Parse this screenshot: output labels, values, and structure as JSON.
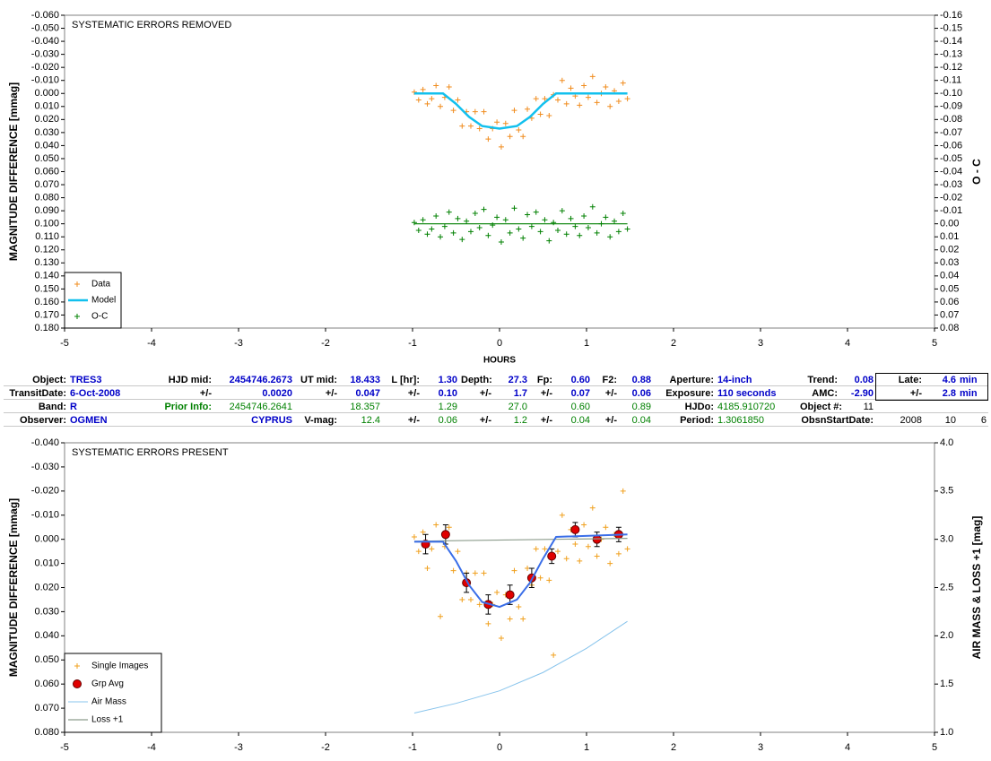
{
  "chart_data": [
    {
      "type": "scatter-line",
      "title": "SYSTEMATIC ERRORS REMOVED",
      "ylabel": "MAGNITUDE DIFFERENCE [mmag]",
      "y2label": "O - C",
      "xlabel": "HOURS",
      "xlim": [
        -5,
        5
      ],
      "xticks": [
        -5,
        -4,
        -3,
        -2,
        -1,
        0,
        1,
        2,
        3,
        4,
        5
      ],
      "ylim": [
        -0.06,
        0.18
      ],
      "y_reversed": true,
      "yticks": [
        {
          "value": -0.06,
          "label": "-0.060"
        },
        {
          "value": -0.05,
          "label": "-0.050"
        },
        {
          "value": -0.04,
          "label": "-0.040"
        },
        {
          "value": -0.03,
          "label": "-0.030"
        },
        {
          "value": -0.02,
          "label": "-0.020"
        },
        {
          "value": -0.01,
          "label": "-0.010"
        },
        {
          "value": 0,
          "label": "0.000"
        },
        {
          "value": 0.01,
          "label": "0.010"
        },
        {
          "value": 0.02,
          "label": "0.020"
        },
        {
          "value": 0.03,
          "label": "0.030"
        },
        {
          "value": 0.04,
          "label": "0.040"
        },
        {
          "value": 0.05,
          "label": "0.050"
        },
        {
          "value": 0.06,
          "label": "0.060"
        },
        {
          "value": 0.07,
          "label": "0.070"
        },
        {
          "value": 0.08,
          "label": "0.080"
        },
        {
          "value": 0.09,
          "label": "0.090"
        },
        {
          "value": 0.1,
          "label": "0.100"
        },
        {
          "value": 0.11,
          "label": "0.110"
        },
        {
          "value": 0.12,
          "label": "0.120"
        },
        {
          "value": 0.13,
          "label": "0.130"
        },
        {
          "value": 0.14,
          "label": "0.140"
        },
        {
          "value": 0.15,
          "label": "0.150"
        },
        {
          "value": 0.16,
          "label": "0.160"
        },
        {
          "value": 0.17,
          "label": "0.170"
        },
        {
          "value": 0.18,
          "label": "0.180"
        }
      ],
      "y2lim": [
        -0.16,
        0.08
      ],
      "y2_reversed": true,
      "y2ticks": [
        -0.16,
        -0.15,
        -0.14,
        -0.13,
        -0.12,
        -0.11,
        {
          "value": -0.1,
          "label": "-0.10"
        },
        -0.09,
        -0.08,
        -0.07,
        -0.06,
        -0.05,
        -0.04,
        -0.03,
        -0.02,
        -0.01,
        {
          "value": 0,
          "label": "0.00"
        },
        0.01,
        0.02,
        0.03,
        0.04,
        0.05,
        0.06,
        0.07,
        0.08
      ],
      "legend": "lower left",
      "x": [
        -0.98,
        -0.93,
        -0.88,
        -0.83,
        -0.78,
        -0.73,
        -0.68,
        -0.63,
        -0.58,
        -0.53,
        -0.48,
        -0.43,
        -0.38,
        -0.33,
        -0.28,
        -0.23,
        -0.18,
        -0.13,
        -0.08,
        -0.03,
        0.02,
        0.07,
        0.12,
        0.17,
        0.22,
        0.27,
        0.32,
        0.37,
        0.42,
        0.47,
        0.52,
        0.57,
        0.62,
        0.67,
        0.72,
        0.77,
        0.82,
        0.87,
        0.92,
        0.97,
        1.02,
        1.07,
        1.12,
        1.17,
        1.22,
        1.27,
        1.32,
        1.37,
        1.42,
        1.47
      ],
      "series": [
        {
          "name": "Data",
          "marker": "plus",
          "color": "#f08c1e",
          "values": [
            -0.001,
            0.005,
            -0.003,
            0.008,
            0.004,
            -0.006,
            0.01,
            0.003,
            -0.005,
            0.013,
            0.005,
            0.025,
            0.014,
            0.025,
            0.014,
            0.027,
            0.014,
            0.035,
            0.027,
            0.022,
            0.041,
            0.023,
            0.033,
            0.013,
            0.028,
            0.033,
            0.012,
            0.019,
            0.004,
            0.016,
            0.004,
            0.017,
            0.001,
            0.005,
            -0.01,
            0.008,
            -0.004,
            0.002,
            0.009,
            -0.006,
            0.003,
            -0.013,
            0.007,
            0,
            -0.005,
            0.01,
            -0.002,
            0.006,
            -0.008,
            0.004
          ]
        },
        {
          "name": "Model",
          "marker": "line",
          "color": "#12c0ee",
          "width": 2.5,
          "x": [
            -0.98,
            -0.65,
            -0.5,
            -0.35,
            -0.2,
            0,
            0.2,
            0.35,
            0.5,
            0.65,
            1.47
          ],
          "values": [
            0,
            0,
            0.008,
            0.018,
            0.025,
            0.027,
            0.025,
            0.018,
            0.008,
            0,
            0
          ]
        },
        {
          "name": "O-C",
          "marker": "plus",
          "color": "#008000",
          "axis": "y2",
          "zero_line": true,
          "values": [
            -0.001,
            0.005,
            -0.003,
            0.008,
            0.004,
            -0.006,
            0.01,
            0.002,
            -0.009,
            0.007,
            -0.004,
            0.012,
            -0.002,
            0.006,
            -0.008,
            0.003,
            -0.011,
            0.009,
            0.001,
            -0.005,
            0.014,
            -0.003,
            0.007,
            -0.012,
            0.004,
            0.011,
            -0.007,
            0.002,
            -0.009,
            0.006,
            -0.003,
            0.013,
            -0.001,
            0.005,
            -0.01,
            0.008,
            -0.004,
            0.002,
            0.009,
            -0.006,
            0.003,
            -0.013,
            0.007,
            0,
            -0.005,
            0.01,
            -0.002,
            0.006,
            -0.008,
            0.004
          ]
        }
      ]
    },
    {
      "type": "scatter-line",
      "title": "SYSTEMATIC ERRORS PRESENT",
      "ylabel": "MAGNITUDE DIFFERENCE [mmag]",
      "y2label": "AIR MASS & LOSS +1 [mag]",
      "xlim": [
        -5,
        5
      ],
      "xticks": [
        -5,
        -4,
        -3,
        -2,
        -1,
        0,
        1,
        2,
        3,
        4,
        5
      ],
      "ylim": [
        -0.04,
        0.08
      ],
      "y_reversed": true,
      "yticks": [
        {
          "value": -0.04,
          "label": "-0.040"
        },
        {
          "value": -0.03,
          "label": "-0.030"
        },
        {
          "value": -0.02,
          "label": "-0.020"
        },
        {
          "value": -0.01,
          "label": "-0.010"
        },
        {
          "value": 0,
          "label": "0.000"
        },
        {
          "value": 0.01,
          "label": "0.010"
        },
        {
          "value": 0.02,
          "label": "0.020"
        },
        {
          "value": 0.03,
          "label": "0.030"
        },
        {
          "value": 0.04,
          "label": "0.040"
        },
        {
          "value": 0.05,
          "label": "0.050"
        },
        {
          "value": 0.06,
          "label": "0.060"
        },
        {
          "value": 0.07,
          "label": "0.070"
        },
        {
          "value": 0.08,
          "label": "0.080"
        }
      ],
      "y2lim": [
        1,
        4
      ],
      "y2_reversed": false,
      "y2ticks": [
        {
          "value": 1,
          "label": "1.0"
        },
        1.5,
        {
          "value": 2,
          "label": "2.0"
        },
        2.5,
        {
          "value": 3,
          "label": "3.0"
        },
        3.5,
        {
          "value": 4,
          "label": "4.0"
        }
      ],
      "legend": "lower left",
      "x": [
        -0.98,
        -0.93,
        -0.88,
        -0.83,
        -0.78,
        -0.73,
        -0.68,
        -0.63,
        -0.58,
        -0.53,
        -0.48,
        -0.43,
        -0.38,
        -0.33,
        -0.28,
        -0.23,
        -0.18,
        -0.13,
        -0.08,
        -0.03,
        0.02,
        0.07,
        0.12,
        0.17,
        0.22,
        0.27,
        0.32,
        0.37,
        0.42,
        0.47,
        0.52,
        0.57,
        0.62,
        0.67,
        0.72,
        0.77,
        0.82,
        0.87,
        0.92,
        0.97,
        1.02,
        1.07,
        1.12,
        1.17,
        1.22,
        1.27,
        1.32,
        1.37,
        1.42,
        1.47
      ],
      "series": [
        {
          "name": "Single Images",
          "marker": "plus",
          "color": "#f0a01e",
          "values": [
            -0.001,
            0.005,
            -0.003,
            0.012,
            0.004,
            -0.006,
            0.032,
            0.003,
            -0.005,
            0.013,
            0.005,
            0.025,
            0.014,
            0.025,
            0.014,
            0.027,
            0.014,
            0.035,
            0.027,
            0.022,
            0.041,
            0.023,
            0.033,
            0.013,
            0.028,
            0.033,
            0.012,
            0.019,
            0.004,
            0.016,
            0.004,
            0.017,
            0.048,
            0.005,
            -0.01,
            0.008,
            -0.004,
            0.002,
            0.009,
            -0.006,
            0.003,
            -0.013,
            0.007,
            0,
            -0.005,
            0.01,
            -0.002,
            0.006,
            -0.02,
            0.004
          ]
        },
        {
          "name": "Grp Avg",
          "marker": "circle",
          "color": "#e00000",
          "x": [
            -0.85,
            -0.62,
            -0.38,
            -0.13,
            0.12,
            0.37,
            0.6,
            0.87,
            1.12,
            1.37
          ],
          "values": [
            0.002,
            -0.002,
            0.018,
            0.027,
            0.023,
            0.016,
            0.007,
            -0.004,
            0,
            -0.002
          ],
          "errors": [
            0.004,
            0.004,
            0.004,
            0.004,
            0.004,
            0.004,
            0.003,
            0.003,
            0.003,
            0.003
          ]
        },
        {
          "name": "Air Mass",
          "marker": "line",
          "color": "#88c4ec",
          "width": 1,
          "axis": "y2",
          "x": [
            -0.98,
            -0.5,
            0,
            0.5,
            1,
            1.47
          ],
          "values": [
            1.2,
            1.3,
            1.43,
            1.62,
            1.87,
            2.15
          ]
        },
        {
          "name": "Loss +1",
          "marker": "line",
          "color": "#8c9c8c",
          "width": 1.2,
          "axis": "y2",
          "x": [
            -0.98,
            1.47
          ],
          "values": [
            2.98,
            3.01
          ]
        },
        {
          "marker": "line",
          "color": "#3a6ee8",
          "width": 2,
          "x": [
            -0.98,
            -0.65,
            -0.5,
            -0.35,
            -0.2,
            0,
            0.2,
            0.35,
            0.5,
            0.65,
            1.47
          ],
          "values": [
            0.001,
            0.001,
            0.009,
            0.019,
            0.026,
            0.028,
            0.025,
            0.018,
            0.008,
            -0.001,
            -0.002
          ]
        }
      ]
    }
  ],
  "table": {
    "rows": [
      [
        "Object:",
        "TRES3",
        "HJD mid:",
        "2454746.2673",
        "UT mid:",
        "18.433",
        "L [hr]:",
        "1.30",
        "Depth:",
        "27.3",
        "Fp:",
        "0.60",
        "F2:",
        "0.88",
        "Aperture:",
        "14-inch",
        "Trend:",
        "0.08",
        "Late:",
        "4.6",
        "min"
      ],
      [
        "TransitDate:",
        "6-Oct-2008",
        "+/-",
        "0.0020",
        "+/-",
        "0.047",
        "+/-",
        "0.10",
        "+/-",
        "1.7",
        "+/-",
        "0.07",
        "+/-",
        "0.06",
        "Exposure:",
        "110 seconds",
        "AMC:",
        "-2.90",
        "+/-",
        "2.8",
        "min"
      ],
      [
        "Band:",
        "R",
        "Prior Info:",
        "2454746.2641",
        null,
        "18.357",
        null,
        "1.29",
        null,
        "27.0",
        null,
        "0.60",
        null,
        "0.89",
        "HJDo:",
        "4185.910720",
        "Object #:",
        "11",
        null,
        null,
        null
      ],
      [
        "Observer:",
        "OGMEN",
        null,
        "CYPRUS",
        "V-mag:",
        "12.4",
        "+/-",
        "0.06",
        "+/-",
        "1.2",
        "+/-",
        "0.04",
        "+/-",
        "0.04",
        "Period:",
        "1.3061850",
        "ObsnStartDate:",
        null,
        "2008",
        "10",
        "6"
      ]
    ]
  }
}
